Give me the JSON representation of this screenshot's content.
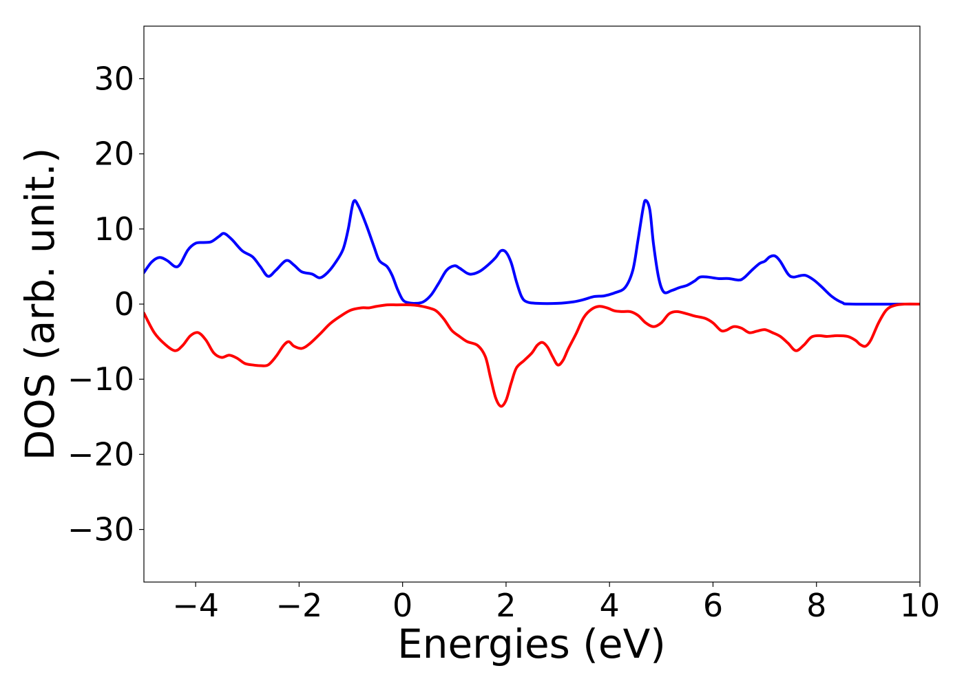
{
  "chart_data": {
    "type": "line",
    "title": "",
    "xlabel": "Energies (eV)",
    "ylabel": "DOS (arb. unit.)",
    "xlim": [
      -5,
      10
    ],
    "ylim": [
      -37,
      37
    ],
    "grid": false,
    "legend": "none",
    "x_ticks": [
      -4,
      -2,
      0,
      2,
      4,
      6,
      8,
      10
    ],
    "y_ticks": [
      -30,
      -20,
      -10,
      0,
      10,
      20,
      30
    ],
    "x_tick_labels": [
      "−4",
      "−2",
      "0",
      "2",
      "4",
      "6",
      "8",
      "10"
    ],
    "y_tick_labels": [
      "−30",
      "−20",
      "−10",
      "0",
      "10",
      "20",
      "30"
    ],
    "series": [
      {
        "color": "#0000ff",
        "points": [
          [
            -5.0,
            4.2
          ],
          [
            -4.85,
            5.6
          ],
          [
            -4.7,
            6.2
          ],
          [
            -4.55,
            5.8
          ],
          [
            -4.4,
            5.0
          ],
          [
            -4.3,
            5.3
          ],
          [
            -4.15,
            7.2
          ],
          [
            -4.0,
            8.1
          ],
          [
            -3.85,
            8.2
          ],
          [
            -3.7,
            8.3
          ],
          [
            -3.55,
            9.0
          ],
          [
            -3.45,
            9.4
          ],
          [
            -3.3,
            8.6
          ],
          [
            -3.1,
            7.1
          ],
          [
            -2.9,
            6.3
          ],
          [
            -2.75,
            5.0
          ],
          [
            -2.6,
            3.7
          ],
          [
            -2.45,
            4.5
          ],
          [
            -2.25,
            5.8
          ],
          [
            -2.1,
            5.2
          ],
          [
            -1.95,
            4.3
          ],
          [
            -1.75,
            4.0
          ],
          [
            -1.6,
            3.5
          ],
          [
            -1.45,
            4.2
          ],
          [
            -1.3,
            5.5
          ],
          [
            -1.15,
            7.3
          ],
          [
            -1.05,
            10.0
          ],
          [
            -0.95,
            13.6
          ],
          [
            -0.85,
            13.0
          ],
          [
            -0.7,
            10.5
          ],
          [
            -0.55,
            7.6
          ],
          [
            -0.45,
            5.8
          ],
          [
            -0.3,
            5.0
          ],
          [
            -0.2,
            3.8
          ],
          [
            -0.1,
            2.0
          ],
          [
            0.0,
            0.6
          ],
          [
            0.1,
            0.2
          ],
          [
            0.25,
            0.1
          ],
          [
            0.4,
            0.3
          ],
          [
            0.55,
            1.2
          ],
          [
            0.7,
            2.8
          ],
          [
            0.85,
            4.5
          ],
          [
            1.0,
            5.1
          ],
          [
            1.1,
            4.8
          ],
          [
            1.25,
            4.1
          ],
          [
            1.35,
            4.0
          ],
          [
            1.5,
            4.4
          ],
          [
            1.65,
            5.2
          ],
          [
            1.8,
            6.2
          ],
          [
            1.9,
            7.1
          ],
          [
            2.0,
            6.9
          ],
          [
            2.1,
            5.5
          ],
          [
            2.2,
            3.0
          ],
          [
            2.3,
            1.0
          ],
          [
            2.4,
            0.3
          ],
          [
            2.6,
            0.1
          ],
          [
            3.0,
            0.1
          ],
          [
            3.3,
            0.3
          ],
          [
            3.5,
            0.6
          ],
          [
            3.7,
            1.0
          ],
          [
            3.9,
            1.1
          ],
          [
            4.1,
            1.5
          ],
          [
            4.3,
            2.2
          ],
          [
            4.45,
            4.5
          ],
          [
            4.55,
            8.5
          ],
          [
            4.65,
            12.8
          ],
          [
            4.7,
            13.8
          ],
          [
            4.78,
            12.5
          ],
          [
            4.85,
            8.0
          ],
          [
            4.95,
            3.5
          ],
          [
            5.05,
            1.6
          ],
          [
            5.2,
            1.8
          ],
          [
            5.35,
            2.2
          ],
          [
            5.5,
            2.5
          ],
          [
            5.65,
            3.1
          ],
          [
            5.75,
            3.6
          ],
          [
            5.9,
            3.6
          ],
          [
            6.1,
            3.4
          ],
          [
            6.3,
            3.4
          ],
          [
            6.5,
            3.2
          ],
          [
            6.6,
            3.5
          ],
          [
            6.75,
            4.5
          ],
          [
            6.9,
            5.4
          ],
          [
            7.0,
            5.7
          ],
          [
            7.1,
            6.3
          ],
          [
            7.2,
            6.4
          ],
          [
            7.3,
            5.7
          ],
          [
            7.45,
            4.0
          ],
          [
            7.55,
            3.6
          ],
          [
            7.7,
            3.8
          ],
          [
            7.8,
            3.8
          ],
          [
            7.95,
            3.2
          ],
          [
            8.1,
            2.3
          ],
          [
            8.3,
            1.0
          ],
          [
            8.5,
            0.2
          ],
          [
            8.7,
            0.0
          ],
          [
            10.0,
            0.0
          ]
        ]
      },
      {
        "color": "#ff0000",
        "points": [
          [
            -5.0,
            -1.2
          ],
          [
            -4.8,
            -3.8
          ],
          [
            -4.6,
            -5.3
          ],
          [
            -4.4,
            -6.2
          ],
          [
            -4.25,
            -5.5
          ],
          [
            -4.1,
            -4.2
          ],
          [
            -3.95,
            -3.8
          ],
          [
            -3.8,
            -4.8
          ],
          [
            -3.65,
            -6.5
          ],
          [
            -3.5,
            -7.1
          ],
          [
            -3.35,
            -6.8
          ],
          [
            -3.2,
            -7.2
          ],
          [
            -3.05,
            -7.9
          ],
          [
            -2.9,
            -8.1
          ],
          [
            -2.75,
            -8.2
          ],
          [
            -2.6,
            -8.1
          ],
          [
            -2.45,
            -7.0
          ],
          [
            -2.3,
            -5.5
          ],
          [
            -2.2,
            -5.0
          ],
          [
            -2.1,
            -5.6
          ],
          [
            -1.95,
            -5.9
          ],
          [
            -1.8,
            -5.3
          ],
          [
            -1.6,
            -4.0
          ],
          [
            -1.4,
            -2.6
          ],
          [
            -1.2,
            -1.6
          ],
          [
            -1.0,
            -0.8
          ],
          [
            -0.8,
            -0.5
          ],
          [
            -0.65,
            -0.5
          ],
          [
            -0.5,
            -0.3
          ],
          [
            -0.3,
            -0.1
          ],
          [
            -0.1,
            -0.1
          ],
          [
            0.15,
            -0.1
          ],
          [
            0.3,
            -0.2
          ],
          [
            0.5,
            -0.5
          ],
          [
            0.65,
            -0.9
          ],
          [
            0.8,
            -2.0
          ],
          [
            0.95,
            -3.5
          ],
          [
            1.1,
            -4.3
          ],
          [
            1.25,
            -5.0
          ],
          [
            1.45,
            -5.5
          ],
          [
            1.6,
            -7.0
          ],
          [
            1.7,
            -9.8
          ],
          [
            1.8,
            -12.5
          ],
          [
            1.9,
            -13.6
          ],
          [
            2.0,
            -12.8
          ],
          [
            2.1,
            -10.5
          ],
          [
            2.2,
            -8.5
          ],
          [
            2.35,
            -7.5
          ],
          [
            2.5,
            -6.5
          ],
          [
            2.6,
            -5.5
          ],
          [
            2.7,
            -5.1
          ],
          [
            2.8,
            -5.7
          ],
          [
            2.9,
            -7.0
          ],
          [
            3.0,
            -8.1
          ],
          [
            3.1,
            -7.5
          ],
          [
            3.2,
            -6.0
          ],
          [
            3.35,
            -4.0
          ],
          [
            3.5,
            -1.8
          ],
          [
            3.65,
            -0.7
          ],
          [
            3.8,
            -0.3
          ],
          [
            3.95,
            -0.5
          ],
          [
            4.1,
            -0.9
          ],
          [
            4.25,
            -1.0
          ],
          [
            4.4,
            -1.0
          ],
          [
            4.55,
            -1.5
          ],
          [
            4.7,
            -2.5
          ],
          [
            4.85,
            -3.0
          ],
          [
            5.0,
            -2.5
          ],
          [
            5.15,
            -1.3
          ],
          [
            5.3,
            -1.0
          ],
          [
            5.5,
            -1.3
          ],
          [
            5.65,
            -1.6
          ],
          [
            5.85,
            -1.9
          ],
          [
            6.0,
            -2.5
          ],
          [
            6.15,
            -3.5
          ],
          [
            6.25,
            -3.5
          ],
          [
            6.4,
            -3.0
          ],
          [
            6.55,
            -3.2
          ],
          [
            6.7,
            -3.8
          ],
          [
            6.85,
            -3.6
          ],
          [
            7.0,
            -3.4
          ],
          [
            7.15,
            -3.8
          ],
          [
            7.3,
            -4.3
          ],
          [
            7.45,
            -5.2
          ],
          [
            7.6,
            -6.2
          ],
          [
            7.75,
            -5.5
          ],
          [
            7.9,
            -4.4
          ],
          [
            8.05,
            -4.2
          ],
          [
            8.2,
            -4.3
          ],
          [
            8.4,
            -4.2
          ],
          [
            8.6,
            -4.3
          ],
          [
            8.75,
            -4.8
          ],
          [
            8.85,
            -5.4
          ],
          [
            8.95,
            -5.6
          ],
          [
            9.05,
            -4.8
          ],
          [
            9.2,
            -2.5
          ],
          [
            9.35,
            -0.8
          ],
          [
            9.5,
            -0.2
          ],
          [
            9.7,
            0.0
          ],
          [
            10.0,
            0.0
          ]
        ]
      }
    ]
  }
}
